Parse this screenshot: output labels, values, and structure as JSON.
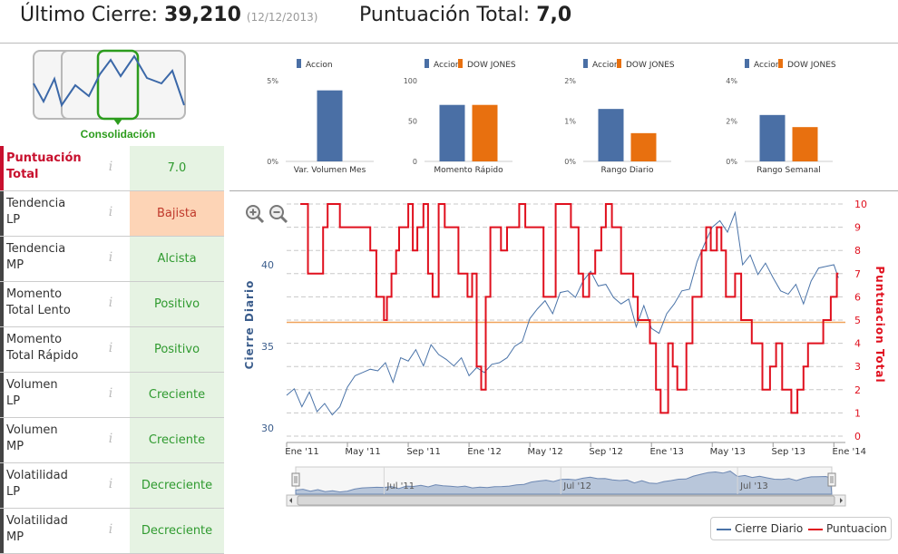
{
  "header": {
    "last_close_label": "Último Cierre:",
    "last_close_value": "39,210",
    "last_close_date": "(12/12/2013)",
    "score_label": "Puntuación Total:",
    "score_value": "7,0"
  },
  "pattern": {
    "label": "Consolidación"
  },
  "rows": [
    {
      "label_line1": "Puntuación",
      "label_line2": "Total",
      "value": "7.0"
    },
    {
      "label_line1": "Tendencia",
      "label_line2": "LP",
      "value": "Bajista"
    },
    {
      "label_line1": "Tendencia",
      "label_line2": "MP",
      "value": "Alcista"
    },
    {
      "label_line1": "Momento",
      "label_line2": "Total Lento",
      "value": "Positivo"
    },
    {
      "label_line1": "Momento",
      "label_line2": "Total Rápido",
      "value": "Positivo"
    },
    {
      "label_line1": "Volumen",
      "label_line2": "LP",
      "value": "Creciente"
    },
    {
      "label_line1": "Volumen",
      "label_line2": "MP",
      "value": "Creciente"
    },
    {
      "label_line1": "Volatilidad",
      "label_line2": "LP",
      "value": "Decreciente"
    },
    {
      "label_line1": "Volatilidad",
      "label_line2": "MP",
      "value": "Decreciente"
    }
  ],
  "info_glyph": "i",
  "colors": {
    "accion": "#4a6fa5",
    "dow_jones": "#e8700f",
    "price_line": "#4a73a8",
    "score_line": "#e0101e",
    "threshold_line": "#f0a35a",
    "navigator_fill": "#b8c6da"
  },
  "chart_data": [
    {
      "type": "bar",
      "legend": [
        "Accion"
      ],
      "xlabel": "Var. Volumen Mes",
      "yticks": [
        "5%",
        "0%"
      ],
      "ylim": [
        0,
        5
      ],
      "series": [
        {
          "name": "Accion",
          "values": [
            4.4
          ]
        }
      ]
    },
    {
      "type": "bar",
      "legend": [
        "Accion",
        "DOW JONES"
      ],
      "xlabel": "Momento Rápido",
      "yticks": [
        "100",
        "50",
        "0"
      ],
      "ylim": [
        0,
        100
      ],
      "series": [
        {
          "name": "Accion",
          "values": [
            70
          ]
        },
        {
          "name": "DOW JONES",
          "values": [
            70
          ]
        }
      ]
    },
    {
      "type": "bar",
      "legend": [
        "Accion",
        "DOW JONES"
      ],
      "xlabel": "Rango Diario",
      "yticks": [
        "2%",
        "1%",
        "0%"
      ],
      "ylim": [
        0,
        2
      ],
      "series": [
        {
          "name": "Accion",
          "values": [
            1.3
          ]
        },
        {
          "name": "DOW JONES",
          "values": [
            0.7
          ]
        }
      ]
    },
    {
      "type": "bar",
      "legend": [
        "Accion",
        "DOW JONES"
      ],
      "xlabel": "Rango Semanal",
      "yticks": [
        "4%",
        "2%",
        "0%"
      ],
      "ylim": [
        0,
        4
      ],
      "series": [
        {
          "name": "Accion",
          "values": [
            2.3
          ]
        },
        {
          "name": "DOW JONES",
          "values": [
            1.7
          ]
        }
      ]
    },
    {
      "type": "line",
      "ylabel": "Cierre Diario",
      "y2label": "Puntuacion Total",
      "ylim": [
        29.5,
        43.5
      ],
      "y_ticks": [
        "30",
        "35",
        "40"
      ],
      "y2lim": [
        0,
        10
      ],
      "y2_ticks": [
        "0",
        "1",
        "2",
        "3",
        "4",
        "5",
        "6",
        "7",
        "8",
        "9",
        "10"
      ],
      "xlim": [
        0,
        36.4
      ],
      "x_ticks": [
        "Ene '11",
        "May '11",
        "Sep '11",
        "Ene '12",
        "May '12",
        "Sep '12",
        "Ene '13",
        "May '13",
        "Sep '13",
        "Ene '14"
      ],
      "threshold": 4.9,
      "navigator_labels": [
        "Jul '11",
        "Jul '12",
        "Jul '13"
      ],
      "series": [
        {
          "name": "Cierre Diario",
          "x": [
            0,
            0.5,
            1,
            1.5,
            2,
            2.5,
            3,
            3.5,
            4,
            4.5,
            5,
            5.5,
            6,
            6.5,
            7,
            7.5,
            8,
            8.5,
            9,
            9.5,
            10,
            10.5,
            11,
            11.5,
            12,
            12.5,
            13,
            13.5,
            14,
            14.5,
            15,
            15.5,
            16,
            16.5,
            17,
            17.5,
            18,
            18.5,
            19,
            19.5,
            20,
            20.5,
            21,
            21.5,
            22,
            22.5,
            23,
            23.5,
            24,
            24.5,
            25,
            25.5,
            26,
            26.5,
            27,
            27.5,
            28,
            28.5,
            29,
            29.5,
            30,
            30.5,
            31,
            31.5,
            32,
            32.5,
            33,
            33.5,
            34,
            34.5,
            35,
            35.5,
            36,
            36.3
          ],
          "values": [
            32.0,
            32.4,
            31.3,
            32.2,
            31.0,
            31.5,
            30.8,
            31.3,
            32.5,
            33.2,
            33.4,
            33.6,
            33.5,
            34.0,
            32.8,
            34.3,
            34.1,
            34.8,
            33.8,
            35.1,
            34.5,
            34.2,
            33.8,
            34.3,
            33.2,
            33.7,
            33.4,
            33.9,
            34.0,
            34.3,
            35.0,
            35.3,
            36.7,
            37.3,
            37.8,
            37.0,
            38.3,
            38.4,
            38.0,
            39.0,
            39.6,
            38.7,
            38.8,
            38.0,
            37.6,
            37.9,
            36.2,
            37.5,
            36.1,
            35.8,
            37.0,
            37.6,
            38.4,
            38.5,
            40.2,
            41.3,
            42.3,
            42.7,
            42.0,
            43.2,
            40.0,
            40.6,
            39.4,
            40.1,
            39.2,
            38.4,
            38.2,
            38.8,
            37.6,
            39.0,
            39.8,
            39.9,
            40.0,
            39.2
          ]
        },
        {
          "name": "Puntuacion",
          "x": [
            0.9,
            1.4,
            1.9,
            2.4,
            2.7,
            3.5,
            4.5,
            5.5,
            5.9,
            6.4,
            6.6,
            6.9,
            7.2,
            7.4,
            8.0,
            8.3,
            8.6,
            9.0,
            9.3,
            9.6,
            10.0,
            10.4,
            11.3,
            11.9,
            12.2,
            12.5,
            12.8,
            13.1,
            13.4,
            14.1,
            14.5,
            14.9,
            15.3,
            15.7,
            16.2,
            16.5,
            16.9,
            17.7,
            18.7,
            19.2,
            19.5,
            19.9,
            20.3,
            20.7,
            21.0,
            21.4,
            22.0,
            22.5,
            22.8,
            23.1,
            23.5,
            23.9,
            24.3,
            24.6,
            25.1,
            25.4,
            25.7,
            26.3,
            26.7,
            27.3,
            27.6,
            27.9,
            28.3,
            28.6,
            28.9,
            29.2,
            29.5,
            29.9,
            30.3,
            30.6,
            31.0,
            31.3,
            31.8,
            32.2,
            32.6,
            33.2,
            33.6,
            34.0,
            34.3,
            34.7,
            35.0,
            35.3,
            35.8,
            36.2,
            36.3
          ],
          "values": [
            10,
            7,
            7,
            9,
            10,
            9,
            9,
            8,
            6,
            5,
            6,
            7,
            8,
            9,
            10,
            8,
            9,
            10,
            7,
            6,
            10,
            9,
            7,
            6,
            7,
            3,
            2,
            6,
            9,
            8,
            9,
            9,
            10,
            9,
            9,
            9,
            6,
            10,
            9,
            7,
            6,
            7,
            8,
            9,
            10,
            9,
            7,
            7,
            6,
            5,
            5,
            4,
            2,
            1,
            4,
            3,
            2,
            4,
            6,
            8,
            9,
            8,
            9,
            8,
            6,
            6,
            7,
            5,
            5,
            4,
            4,
            2,
            3,
            4,
            2,
            1,
            2,
            3,
            4,
            4,
            4,
            5,
            6,
            7,
            7
          ]
        }
      ]
    }
  ]
}
